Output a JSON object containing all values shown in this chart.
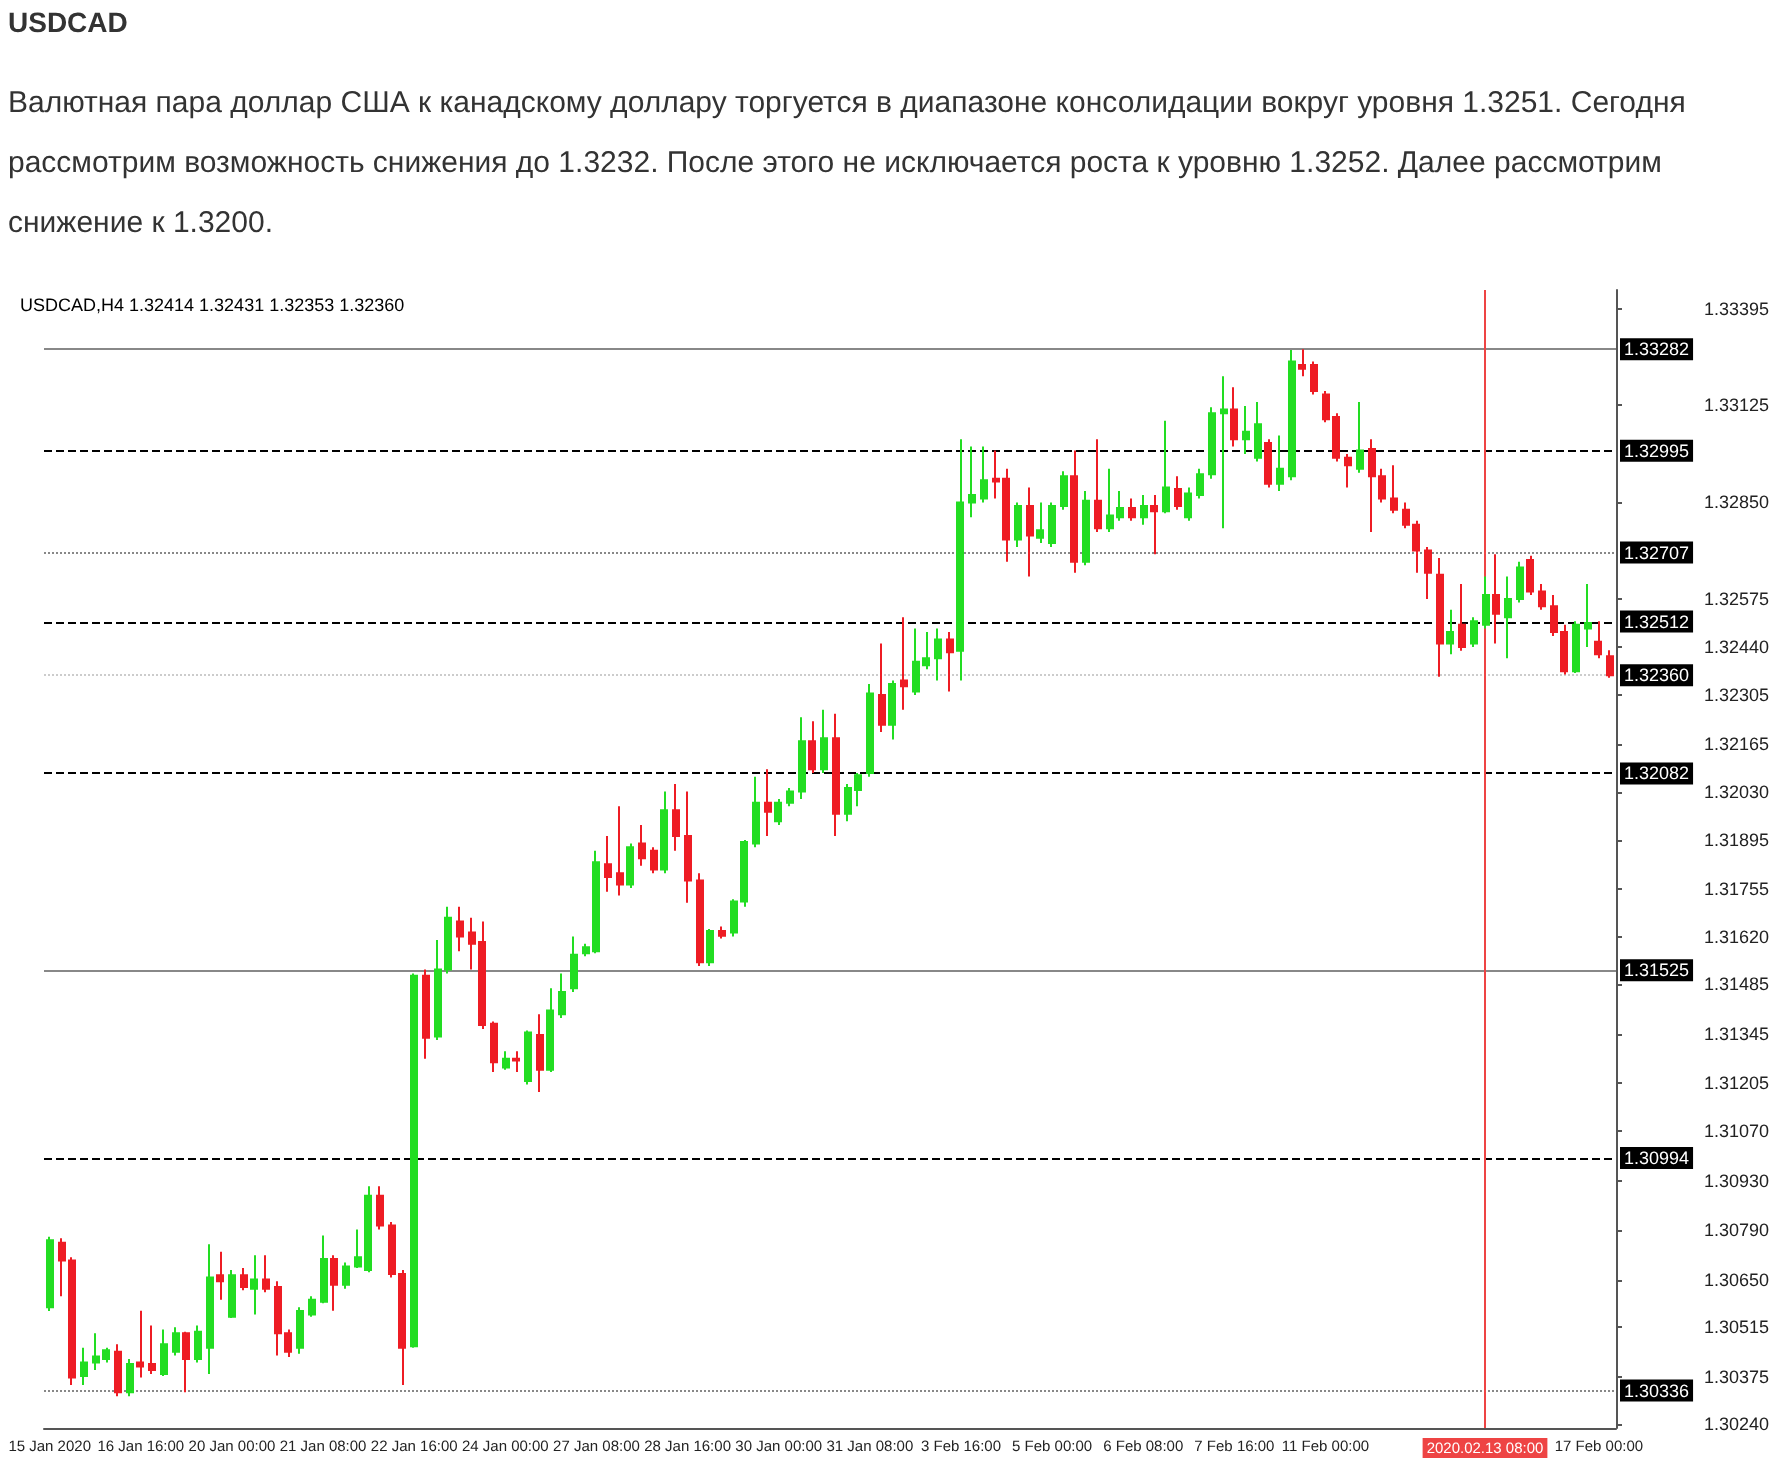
{
  "chart_data": {
    "type": "candlestick",
    "title": "USDCAD",
    "subtitle": "Валютная пара доллар США к канадскому доллару торгуется в диапазоне консолидации вокруг уровня 1.3251. Сегодня рассмотрим возможность снижения до 1.3232. После этого не исключается роста к уровню 1.3252. Далее рассмотрим снижение к 1.3200.",
    "annotations": [
      "USDCAD,H4 1.32414 1.32431 1.32353 1.32360"
    ],
    "categories": [
      "15 Jan 2020",
      null,
      null,
      null,
      null,
      null,
      null,
      null,
      "16 Jan 16:00",
      null,
      null,
      null,
      null,
      null,
      null,
      null,
      "20 Jan 00:00",
      null,
      null,
      null,
      null,
      null,
      null,
      null,
      "21 Jan 08:00",
      null,
      null,
      null,
      null,
      null,
      null,
      null,
      "22 Jan 16:00",
      null,
      null,
      null,
      null,
      null,
      null,
      null,
      "24 Jan 00:00",
      null,
      null,
      null,
      null,
      null,
      null,
      null,
      "27 Jan 08:00",
      null,
      null,
      null,
      null,
      null,
      null,
      null,
      "28 Jan 16:00",
      null,
      null,
      null,
      null,
      null,
      null,
      null,
      "30 Jan 00:00",
      null,
      null,
      null,
      null,
      null,
      null,
      null,
      "31 Jan 08:00",
      null,
      null,
      null,
      null,
      null,
      null,
      null,
      "3 Feb 16:00",
      null,
      null,
      null,
      null,
      null,
      null,
      null,
      "5 Feb 00:00",
      null,
      null,
      null,
      null,
      null,
      null,
      null,
      "6 Feb 08:00",
      null,
      null,
      null,
      null,
      null,
      null,
      null,
      "7 Feb 16:00",
      null,
      null,
      null,
      null,
      null,
      null,
      null,
      "11 Feb 00:00",
      null,
      null,
      null,
      null,
      null,
      null,
      null,
      null,
      null,
      null,
      null,
      null,
      null,
      "2020.02.13 08:00",
      null,
      null,
      null,
      null,
      null,
      null,
      null,
      null,
      null,
      "17 Feb 00:00",
      null
    ],
    "ohlc": [
      [
        1.30572,
        1.30771,
        1.30561,
        1.30761
      ],
      [
        1.30754,
        1.30767,
        1.30603,
        1.30704
      ],
      [
        1.30704,
        1.30713,
        1.30352,
        1.30373
      ],
      [
        1.30377,
        1.30457,
        1.30352,
        1.30415
      ],
      [
        1.30415,
        1.30498,
        1.30394,
        1.30432
      ],
      [
        1.30425,
        1.30457,
        1.30415,
        1.3045
      ],
      [
        1.30446,
        1.30467,
        1.3032,
        1.30331
      ],
      [
        1.30331,
        1.30425,
        1.3032,
        1.30411
      ],
      [
        1.30415,
        1.30562,
        1.30373,
        1.30404
      ],
      [
        1.30411,
        1.3052,
        1.30383,
        1.30394
      ],
      [
        1.30383,
        1.30509,
        1.30377,
        1.30467
      ],
      [
        1.30446,
        1.30515,
        1.30435,
        1.30498
      ],
      [
        1.30498,
        1.30502,
        1.30331,
        1.30425
      ],
      [
        1.30425,
        1.3052,
        1.30415,
        1.30502
      ],
      [
        1.30457,
        1.3075,
        1.30383,
        1.30656
      ],
      [
        1.30662,
        1.30729,
        1.30593,
        1.30645
      ],
      [
        1.30545,
        1.30677,
        1.30541,
        1.30662
      ],
      [
        1.30662,
        1.30683,
        1.3062,
        1.30629
      ],
      [
        1.30624,
        1.30719,
        1.30551,
        1.3065
      ],
      [
        1.3065,
        1.30719,
        1.30614,
        1.30624
      ],
      [
        1.30629,
        1.30645,
        1.30435,
        1.30498
      ],
      [
        1.30498,
        1.30509,
        1.30431,
        1.30446
      ],
      [
        1.30457,
        1.30572,
        1.3044,
        1.30561
      ],
      [
        1.30551,
        1.30603,
        1.30545,
        1.30593
      ],
      [
        1.30587,
        1.30775,
        1.30583,
        1.30708
      ],
      [
        1.30708,
        1.30719,
        1.30562,
        1.30635
      ],
      [
        1.30635,
        1.30698,
        1.30624,
        1.30687
      ],
      [
        1.30687,
        1.30792,
        1.30683,
        1.30713
      ],
      [
        1.30677,
        1.30914,
        1.30671,
        1.30887
      ],
      [
        1.30887,
        1.30914,
        1.30792,
        1.30803
      ],
      [
        1.30803,
        1.30813,
        1.30656,
        1.30666
      ],
      [
        1.30666,
        1.30677,
        1.30352,
        1.30457
      ],
      [
        1.30461,
        1.31516,
        1.30457,
        1.3151
      ],
      [
        1.3151,
        1.31527,
        1.31275,
        1.31334
      ],
      [
        1.31338,
        1.31611,
        1.31328,
        1.31527
      ],
      [
        1.31527,
        1.31705,
        1.31516,
        1.31674
      ],
      [
        1.31663,
        1.31705,
        1.31579,
        1.31621
      ],
      [
        1.31632,
        1.31674,
        1.31527,
        1.316
      ],
      [
        1.31605,
        1.31663,
        1.31359,
        1.3137
      ],
      [
        1.31374,
        1.3138,
        1.31237,
        1.31265
      ],
      [
        1.3125,
        1.31296,
        1.31244,
        1.31275
      ],
      [
        1.31275,
        1.31296,
        1.31237,
        1.3127
      ],
      [
        1.31212,
        1.31355,
        1.31202,
        1.31349
      ],
      [
        1.31342,
        1.31401,
        1.31181,
        1.31244
      ],
      [
        1.31244,
        1.31474,
        1.31237,
        1.31411
      ],
      [
        1.31401,
        1.31516,
        1.3139,
        1.31464
      ],
      [
        1.31474,
        1.31621,
        1.31464,
        1.31569
      ],
      [
        1.31573,
        1.316,
        1.31565,
        1.3159
      ],
      [
        1.31579,
        1.31863,
        1.31573,
        1.31831
      ],
      [
        1.31825,
        1.31905,
        1.31747,
        1.31789
      ],
      [
        1.318,
        1.31989,
        1.31737,
        1.31768
      ],
      [
        1.31768,
        1.31884,
        1.31758,
        1.31873
      ],
      [
        1.31884,
        1.31936,
        1.31821,
        1.31842
      ],
      [
        1.31863,
        1.31873,
        1.318,
        1.3181
      ],
      [
        1.3181,
        1.32031,
        1.318,
        1.31978
      ],
      [
        1.31978,
        1.32052,
        1.31863,
        1.31905
      ],
      [
        1.31905,
        1.32031,
        1.31716,
        1.31779
      ],
      [
        1.31779,
        1.318,
        1.31537,
        1.31548
      ],
      [
        1.31548,
        1.31642,
        1.31537,
        1.31636
      ],
      [
        1.31636,
        1.31649,
        1.31615,
        1.31623
      ],
      [
        1.31632,
        1.31726,
        1.31621,
        1.3172
      ],
      [
        1.3172,
        1.31894,
        1.31705,
        1.31888
      ],
      [
        1.31884,
        1.32073,
        1.31873,
        1.31999
      ],
      [
        1.31999,
        1.32094,
        1.31905,
        1.31974
      ],
      [
        1.31947,
        1.3201,
        1.31936,
        1.31999
      ],
      [
        1.31999,
        1.32041,
        1.31989,
        1.32031
      ],
      [
        1.32031,
        1.32241,
        1.3201,
        1.32173
      ],
      [
        1.32173,
        1.3223,
        1.32083,
        1.32094
      ],
      [
        1.32094,
        1.32262,
        1.32083,
        1.32182
      ],
      [
        1.32182,
        1.32251,
        1.31905,
        1.31968
      ],
      [
        1.31968,
        1.32052,
        1.31947,
        1.32041
      ],
      [
        1.32035,
        1.32083,
        1.31989,
        1.32077
      ],
      [
        1.32083,
        1.32335,
        1.32073,
        1.32308
      ],
      [
        1.32304,
        1.3245,
        1.32199,
        1.3222
      ],
      [
        1.3222,
        1.32345,
        1.32178,
        1.32335
      ],
      [
        1.32345,
        1.32524,
        1.32262,
        1.32329
      ],
      [
        1.32314,
        1.32492,
        1.32304,
        1.32398
      ],
      [
        1.32388,
        1.32482,
        1.32377,
        1.32408
      ],
      [
        1.32408,
        1.32492,
        1.32345,
        1.32461
      ],
      [
        1.32461,
        1.32482,
        1.32314,
        1.32425
      ],
      [
        1.32429,
        1.33028,
        1.32345,
        1.32849
      ],
      [
        1.32849,
        1.33007,
        1.32807,
        1.3287
      ],
      [
        1.3286,
        1.33007,
        1.32849,
        1.32912
      ],
      [
        1.32916,
        1.32996,
        1.3286,
        1.32908
      ],
      [
        1.32916,
        1.32944,
        1.32681,
        1.32744
      ],
      [
        1.32744,
        1.32849,
        1.32723,
        1.32839
      ],
      [
        1.32839,
        1.32891,
        1.32639,
        1.32755
      ],
      [
        1.32749,
        1.32849,
        1.32734,
        1.3277
      ],
      [
        1.32734,
        1.32849,
        1.32723,
        1.32839
      ],
      [
        1.32839,
        1.32937,
        1.32828,
        1.32923
      ],
      [
        1.32923,
        1.32996,
        1.3265,
        1.32681
      ],
      [
        1.32681,
        1.32881,
        1.32671,
        1.32854
      ],
      [
        1.32854,
        1.33028,
        1.32765,
        1.32776
      ],
      [
        1.32776,
        1.32944,
        1.32765,
        1.32812
      ],
      [
        1.32807,
        1.32881,
        1.32797,
        1.32833
      ],
      [
        1.32833,
        1.3286,
        1.32797,
        1.32807
      ],
      [
        1.32807,
        1.3287,
        1.32786,
        1.32839
      ],
      [
        1.32839,
        1.3287,
        1.32702,
        1.32824
      ],
      [
        1.32824,
        1.3308,
        1.32818,
        1.32891
      ],
      [
        1.32887,
        1.32923,
        1.32828,
        1.32839
      ],
      [
        1.32807,
        1.32891,
        1.32797,
        1.32874
      ],
      [
        1.3287,
        1.32944,
        1.3286,
        1.32929
      ],
      [
        1.32929,
        1.33118,
        1.32916,
        1.33101
      ],
      [
        1.33101,
        1.33206,
        1.32776,
        1.33112
      ],
      [
        1.33112,
        1.33175,
        1.33007,
        1.33028
      ],
      [
        1.33028,
        1.33122,
        1.32986,
        1.33049
      ],
      [
        1.32975,
        1.33133,
        1.32965,
        1.3307
      ],
      [
        1.33017,
        1.33028,
        1.32891,
        1.32902
      ],
      [
        1.32902,
        1.33038,
        1.32881,
        1.32944
      ],
      [
        1.32923,
        1.3328,
        1.32912,
        1.33248
      ],
      [
        1.33238,
        1.33282,
        1.33206,
        1.33227
      ],
      [
        1.33238,
        1.33248,
        1.33154,
        1.33164
      ],
      [
        1.33154,
        1.33164,
        1.33076,
        1.33084
      ],
      [
        1.33091,
        1.33101,
        1.32965,
        1.32975
      ],
      [
        1.32975,
        1.32986,
        1.32891,
        1.32954
      ],
      [
        1.32944,
        1.33133,
        1.32933,
        1.32996
      ],
      [
        1.33,
        1.33028,
        1.32765,
        1.32923
      ],
      [
        1.32923,
        1.32944,
        1.32849,
        1.3286
      ],
      [
        1.3286,
        1.32954,
        1.32818,
        1.32828
      ],
      [
        1.32828,
        1.32849,
        1.32776,
        1.32786
      ],
      [
        1.32786,
        1.32797,
        1.3265,
        1.32713
      ],
      [
        1.32713,
        1.32723,
        1.32576,
        1.3265
      ],
      [
        1.32644,
        1.32692,
        1.32356,
        1.3245
      ],
      [
        1.3245,
        1.32545,
        1.32419,
        1.32482
      ],
      [
        1.32503,
        1.32618,
        1.32429,
        1.3244
      ],
      [
        1.3245,
        1.32524,
        1.3244,
        1.32513
      ],
      [
        1.32503,
        1.32639,
        1.32492,
        1.32587
      ],
      [
        1.32587,
        1.32702,
        1.3245,
        1.32534
      ],
      [
        1.32524,
        1.32639,
        1.32408,
        1.32576
      ],
      [
        1.32576,
        1.32681,
        1.32566,
        1.32665
      ],
      [
        1.32686,
        1.32698,
        1.32587,
        1.32597
      ],
      [
        1.32597,
        1.32618,
        1.32545,
        1.32555
      ],
      [
        1.32555,
        1.32587,
        1.32471,
        1.32482
      ],
      [
        1.32482,
        1.32503,
        1.32362,
        1.32371
      ],
      [
        1.32371,
        1.32513,
        1.32366,
        1.32503
      ],
      [
        1.32492,
        1.32618,
        1.3244,
        1.32508
      ],
      [
        1.32455,
        1.32513,
        1.32408,
        1.32419
      ],
      [
        1.32414,
        1.32431,
        1.32353,
        1.3236
      ]
    ],
    "colors": [
      "#22dd22",
      "#ee1c24",
      "#ee1c24",
      "#22dd22",
      "#22dd22",
      "#22dd22",
      "#ee1c24",
      "#22dd22",
      "#ee1c24",
      "#ee1c24",
      "#22dd22",
      "#22dd22",
      "#ee1c24",
      "#22dd22",
      "#22dd22",
      "#ee1c24",
      "#22dd22",
      "#ee1c24",
      "#22dd22",
      "#ee1c24",
      "#ee1c24",
      "#ee1c24",
      "#22dd22",
      "#22dd22",
      "#22dd22",
      "#ee1c24",
      "#22dd22",
      "#22dd22",
      "#22dd22",
      "#ee1c24",
      "#ee1c24",
      "#ee1c24",
      "#22dd22",
      "#ee1c24",
      "#22dd22",
      "#22dd22",
      "#ee1c24",
      "#ee1c24",
      "#ee1c24",
      "#ee1c24",
      "#22dd22",
      "#ee1c24",
      "#22dd22",
      "#ee1c24",
      "#22dd22",
      "#22dd22",
      "#22dd22",
      "#22dd22",
      "#22dd22",
      "#ee1c24",
      "#ee1c24",
      "#22dd22",
      "#ee1c24",
      "#ee1c24",
      "#22dd22",
      "#ee1c24",
      "#ee1c24",
      "#ee1c24",
      "#22dd22",
      "#ee1c24",
      "#22dd22",
      "#22dd22",
      "#22dd22",
      "#ee1c24",
      "#22dd22",
      "#22dd22",
      "#22dd22",
      "#ee1c24",
      "#22dd22",
      "#ee1c24",
      "#22dd22",
      "#22dd22",
      "#22dd22",
      "#ee1c24",
      "#22dd22",
      "#ee1c24",
      "#22dd22",
      "#22dd22",
      "#22dd22",
      "#ee1c24",
      "#22dd22",
      "#22dd22",
      "#22dd22",
      "#ee1c24",
      "#ee1c24",
      "#22dd22",
      "#ee1c24",
      "#22dd22",
      "#22dd22",
      "#22dd22",
      "#ee1c24",
      "#22dd22",
      "#ee1c24",
      "#22dd22",
      "#22dd22",
      "#ee1c24",
      "#22dd22",
      "#ee1c24",
      "#22dd22",
      "#ee1c24",
      "#22dd22",
      "#22dd22",
      "#22dd22",
      "#22dd22",
      "#ee1c24",
      "#22dd22",
      "#22dd22",
      "#ee1c24",
      "#22dd22",
      "#22dd22",
      "#ee1c24",
      "#ee1c24",
      "#ee1c24",
      "#ee1c24",
      "#ee1c24",
      "#22dd22",
      "#ee1c24",
      "#ee1c24",
      "#ee1c24",
      "#ee1c24",
      "#ee1c24",
      "#ee1c24",
      "#ee1c24",
      "#22dd22",
      "#ee1c24",
      "#22dd22",
      "#22dd22",
      "#ee1c24",
      "#22dd22",
      "#22dd22",
      "#ee1c24",
      "#ee1c24",
      "#ee1c24",
      "#ee1c24",
      "#22dd22",
      "#22dd22",
      "#ee1c24",
      "#ee1c24"
    ],
    "ylim": [
      1.3023,
      1.3345
    ],
    "yticks": [
      1.33395,
      1.33125,
      {
        "value": 1.3285,
        "label": "1.32850"
      },
      1.32575,
      {
        "value": 1.3244,
        "label": "1.32440"
      },
      1.32305,
      1.32165,
      {
        "value": 1.3203,
        "label": "1.32030"
      },
      1.31895,
      1.31755,
      {
        "value": 1.3162,
        "label": "1.31620"
      },
      1.31485,
      1.31345,
      1.31205,
      {
        "value": 1.3107,
        "label": "1.31070"
      },
      {
        "value": 1.3093,
        "label": "1.30930"
      },
      {
        "value": 1.3079,
        "label": "1.30790"
      },
      {
        "value": 1.3065,
        "label": "1.30650"
      },
      1.30515,
      1.30375,
      {
        "value": 1.3024,
        "label": "1.30240"
      }
    ],
    "ref_lines": [
      {
        "axis": "y",
        "value": 1.33282,
        "label": "1.33282",
        "color": "#888888",
        "line_style": "solid"
      },
      {
        "axis": "y",
        "value": 1.32995,
        "label": "1.32995",
        "color": "#000000",
        "line_style": "dashed"
      },
      {
        "axis": "y",
        "value": 1.32707,
        "label": "1.32707",
        "color": "#888888",
        "line_style": "dotted"
      },
      {
        "axis": "y",
        "value": 1.32512,
        "label": "1.32512",
        "color": "#000000",
        "line_style": "dashed"
      },
      {
        "axis": "y",
        "value": 1.3236,
        "label": "1.32360",
        "color": "#cccccc",
        "line_style": "dotted"
      },
      {
        "axis": "y",
        "value": 1.32082,
        "label": "1.32082",
        "color": "#000000",
        "line_style": "dashed"
      },
      {
        "axis": "y",
        "value": 1.31525,
        "label": "1.31525",
        "color": "#888888",
        "line_style": "solid"
      },
      {
        "axis": "y",
        "value": 1.30994,
        "label": "1.30994",
        "color": "#000000",
        "line_style": "dashed"
      },
      {
        "axis": "y",
        "value": 1.30336,
        "label": "1.30336",
        "color": "#888888",
        "line_style": "dotted"
      },
      {
        "axis": "x",
        "value": "2020.02.13 08:00",
        "color": "#ee4444",
        "line_style": "solid"
      }
    ]
  }
}
